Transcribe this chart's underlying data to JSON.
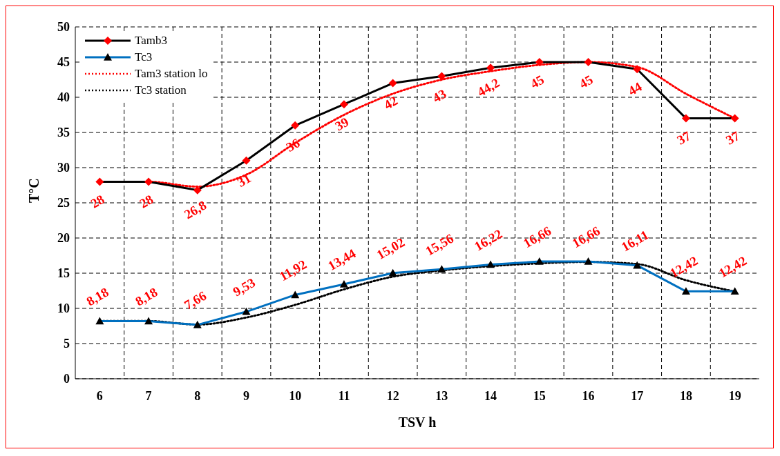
{
  "chart_data": {
    "type": "line",
    "xlabel": "TSV h",
    "ylabel": "T°C",
    "categories": [
      "6",
      "7",
      "8",
      "9",
      "10",
      "11",
      "12",
      "13",
      "14",
      "15",
      "16",
      "17",
      "18",
      "19"
    ],
    "ylim": [
      0,
      50
    ],
    "yticks": [
      0,
      5,
      10,
      15,
      20,
      25,
      30,
      35,
      40,
      45,
      50
    ],
    "grid": true,
    "legend": "top left",
    "series": [
      {
        "name": "Tamb3",
        "color": "#000000",
        "colors": [
          "#ff0000",
          "#ff0000",
          "#ff0000",
          "#ff0000",
          "#ff0000",
          "#ff0000",
          "#ff0000",
          "#ff0000",
          "#ff0000",
          "#ff0000",
          "#ff0000",
          "#ff0000",
          "#ff0000",
          "#ff0000"
        ],
        "marker": "diamond",
        "line_style": "solid",
        "values": [
          28,
          28,
          26.8,
          31,
          36,
          39,
          42,
          43,
          44.2,
          45,
          45,
          44,
          37,
          37
        ],
        "value_labels": [
          "28",
          "28",
          "26,8",
          "31",
          "36",
          "39",
          "42",
          "43",
          "44,2",
          "45",
          "45",
          "44",
          "37",
          "37"
        ]
      },
      {
        "name": "Tc3",
        "color": "#0070c0",
        "colors": [
          "#000000",
          "#000000",
          "#000000",
          "#000000",
          "#000000",
          "#000000",
          "#000000",
          "#000000",
          "#000000",
          "#000000",
          "#000000",
          "#000000",
          "#000000",
          "#000000"
        ],
        "marker": "triangle",
        "line_style": "solid",
        "values": [
          8.18,
          8.18,
          7.66,
          9.53,
          11.92,
          13.44,
          15.02,
          15.56,
          16.22,
          16.66,
          16.66,
          16.11,
          12.42,
          12.42
        ],
        "value_labels": [
          "8,18",
          "8,18",
          "7,66",
          "9,53",
          "11,92",
          "13,44",
          "15,02",
          "15,56",
          "16,22",
          "16,66",
          "16,66",
          "16,11",
          "12,42",
          "12,42"
        ]
      },
      {
        "name": "Tam3 station lo",
        "color": "#ff0000",
        "marker": "none",
        "line_style": "dotted",
        "values": [
          28,
          28,
          27.3,
          29,
          33.5,
          37.5,
          40.5,
          42.5,
          43.7,
          44.6,
          45,
          44.3,
          40.5,
          37
        ]
      },
      {
        "name": "Tc3 station",
        "color": "#000000",
        "marker": "none",
        "line_style": "dotted",
        "values": [
          8.2,
          8.2,
          7.7,
          8.7,
          10.5,
          12.7,
          14.5,
          15.4,
          16,
          16.4,
          16.6,
          16.3,
          14,
          12.4
        ]
      }
    ]
  }
}
